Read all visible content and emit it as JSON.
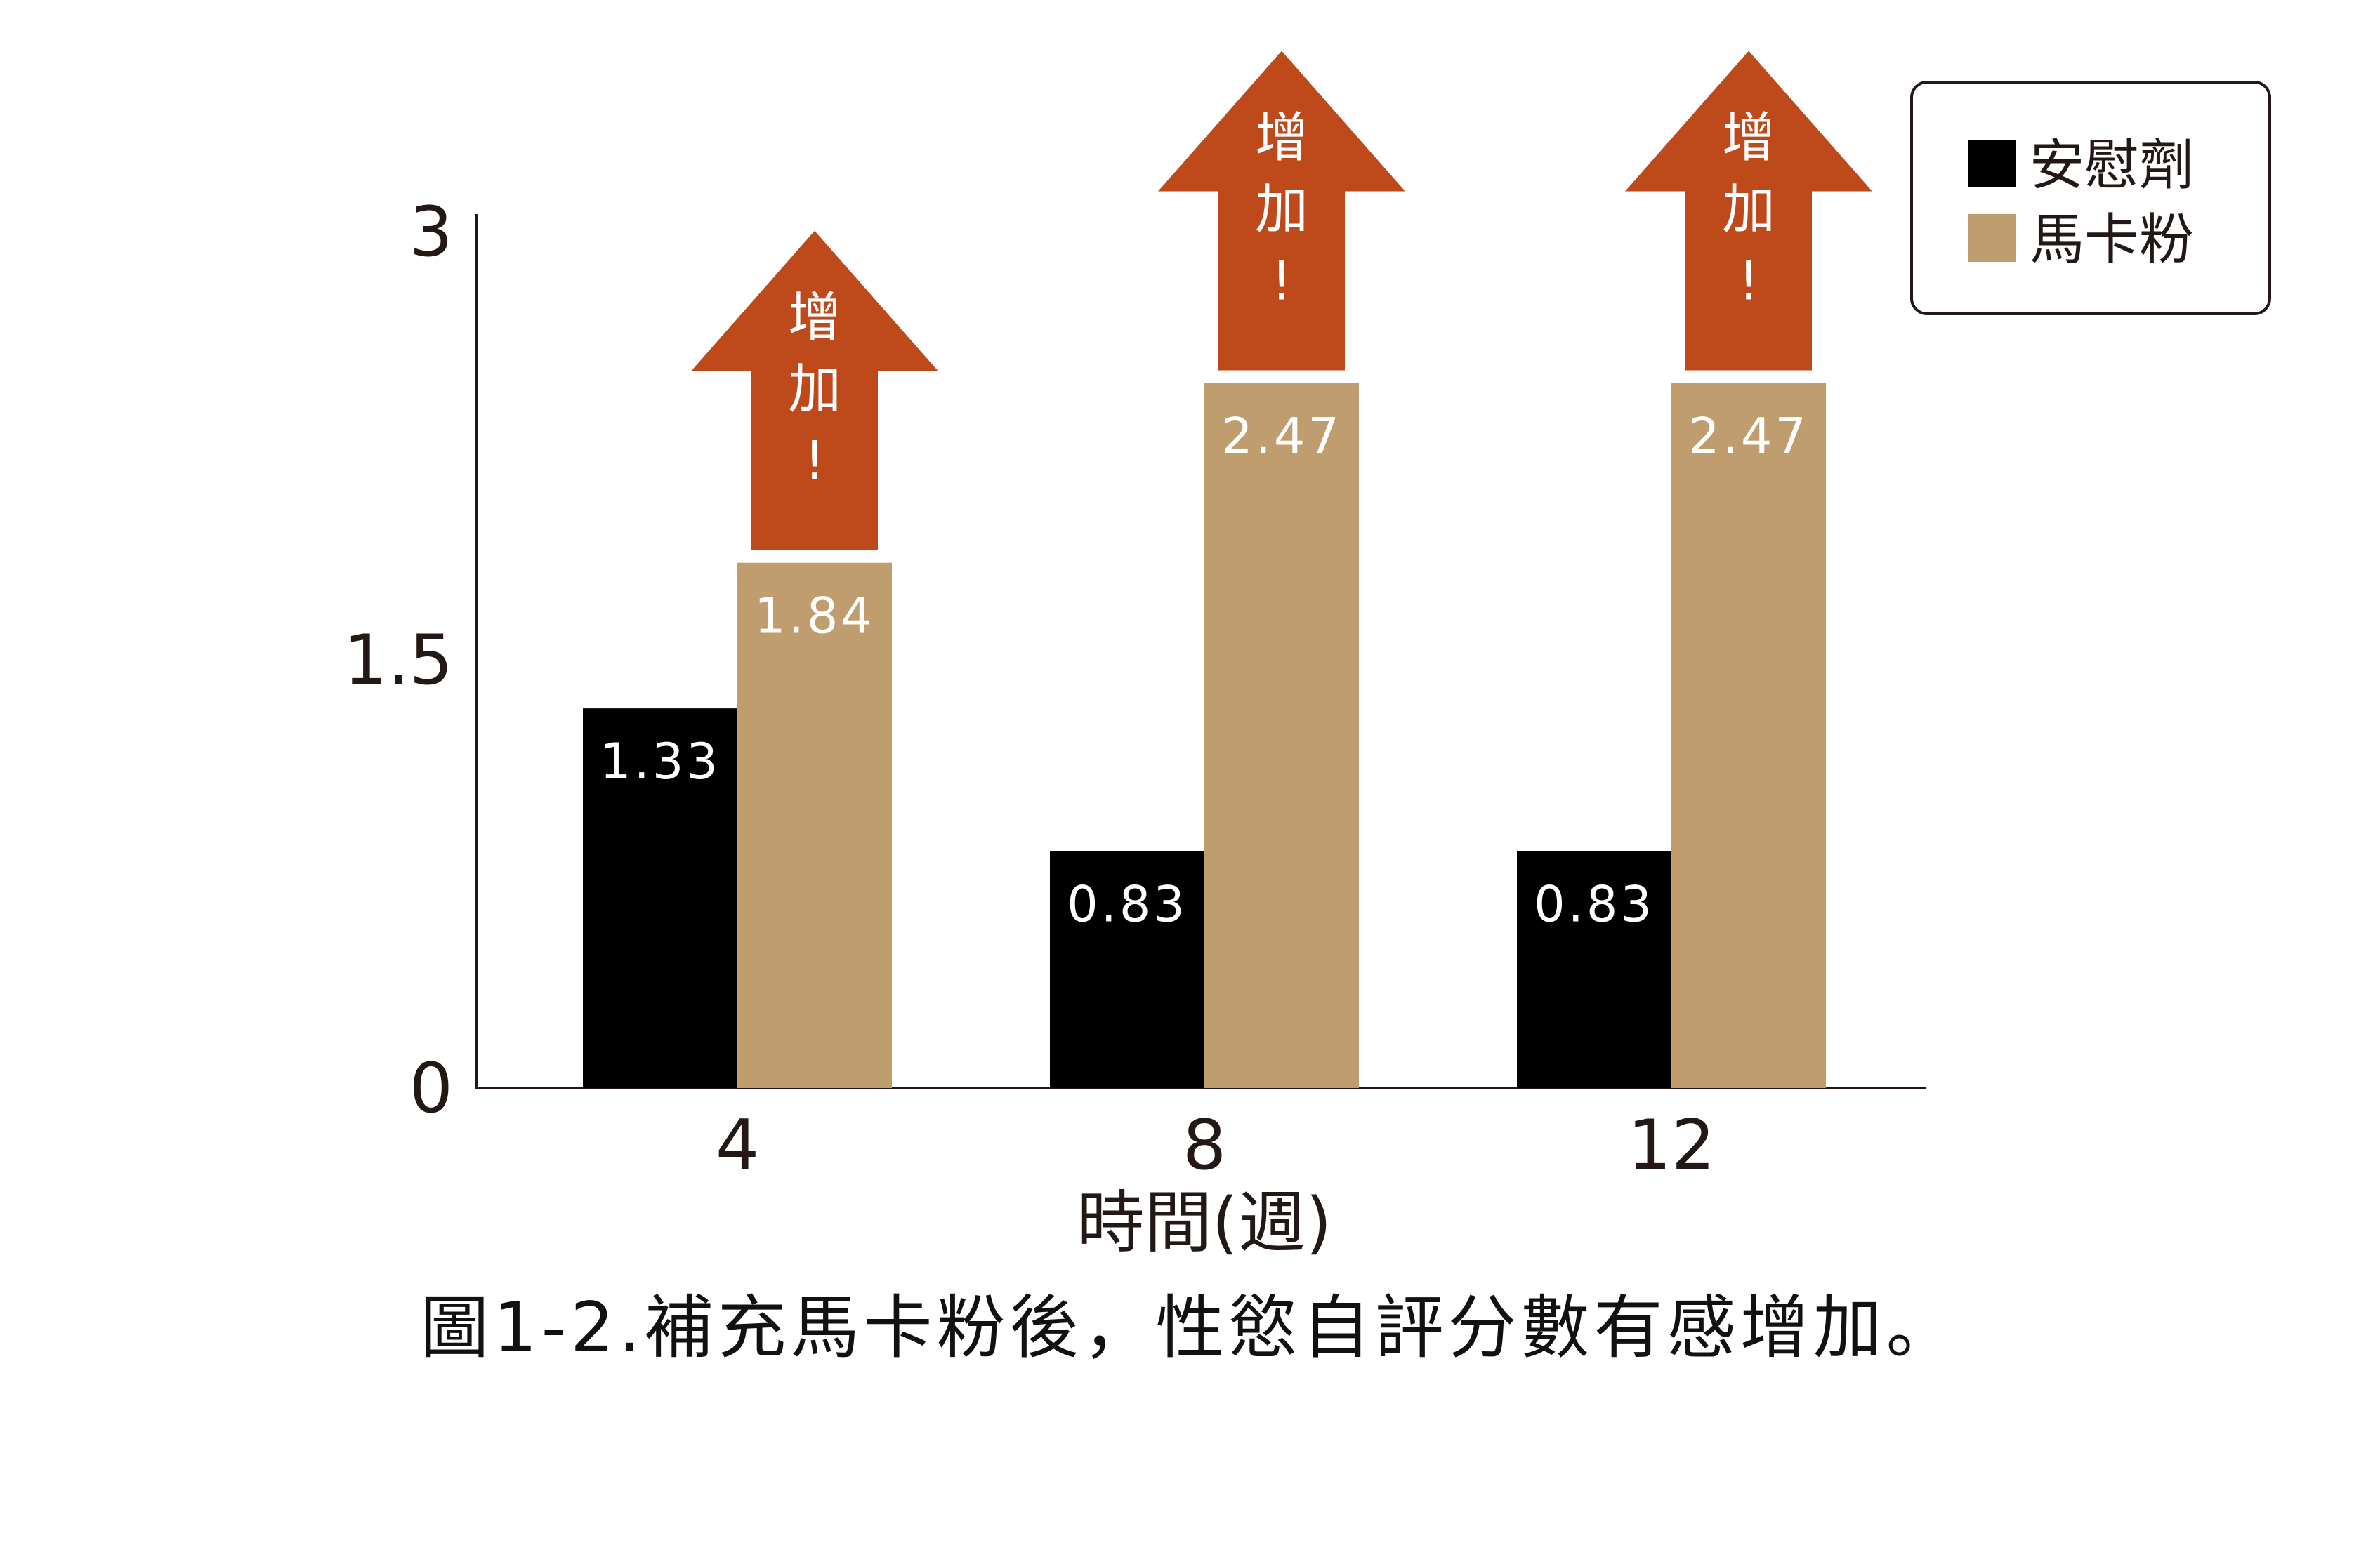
{
  "chart_data": {
    "type": "bar",
    "categories": [
      "4",
      "8",
      "12"
    ],
    "series": [
      {
        "name": "安慰劑",
        "values": [
          1.33,
          0.83,
          0.83
        ],
        "color": "#000000"
      },
      {
        "name": "馬卡粉",
        "values": [
          1.84,
          2.47,
          2.47
        ],
        "color": "#bf9d6e"
      }
    ],
    "value_labels": [
      [
        "1.33",
        "0.83",
        "0.83"
      ],
      [
        "1.84",
        "2.47",
        "2.47"
      ]
    ],
    "yticks": [
      "0",
      "1.5",
      "3"
    ],
    "ylim": [
      0,
      3
    ],
    "xlabel": "時間(週)",
    "ylabel": "",
    "legend_position": "top-right",
    "annotation": {
      "text": [
        "增",
        "加",
        "!"
      ],
      "color": "#be4a1c",
      "series": 1
    },
    "caption": "圖1-2.補充馬卡粉後，性慾自評分數有感增加。"
  }
}
